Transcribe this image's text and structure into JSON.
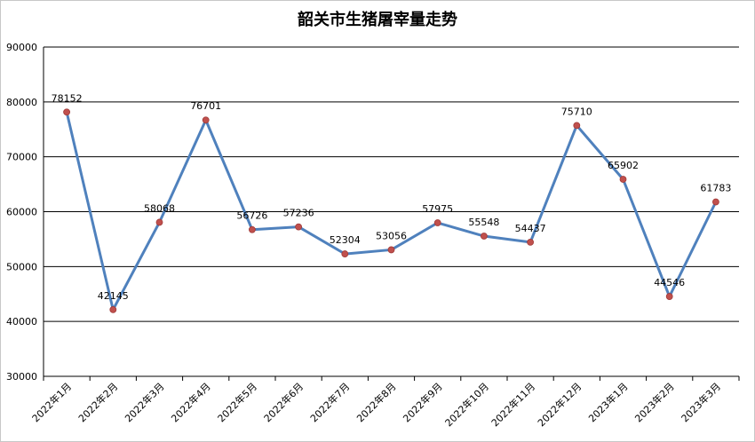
{
  "chart_data": {
    "type": "line",
    "title": "韶关市生猪屠宰量走势",
    "xlabel": "",
    "ylabel": "",
    "ylim": [
      30000,
      90000
    ],
    "yticks": [
      30000,
      40000,
      50000,
      60000,
      70000,
      80000,
      90000
    ],
    "grid": true,
    "legend": "none",
    "categories": [
      "2022年1月",
      "2022年2月",
      "2022年3月",
      "2022年4月",
      "2022年5月",
      "2022年6月",
      "2022年7月",
      "2022年8月",
      "2022年9月",
      "2022年10月",
      "2022年11月",
      "2022年12月",
      "2023年1月",
      "2023年2月",
      "2023年3月"
    ],
    "series": [
      {
        "values": [
          78152,
          42145,
          58068,
          76701,
          56726,
          57236,
          52304,
          53056,
          57975,
          55548,
          54437,
          75710,
          65902,
          44546,
          61783
        ],
        "line_color": "#4f81bd",
        "marker_color": "#c0504d"
      }
    ]
  }
}
